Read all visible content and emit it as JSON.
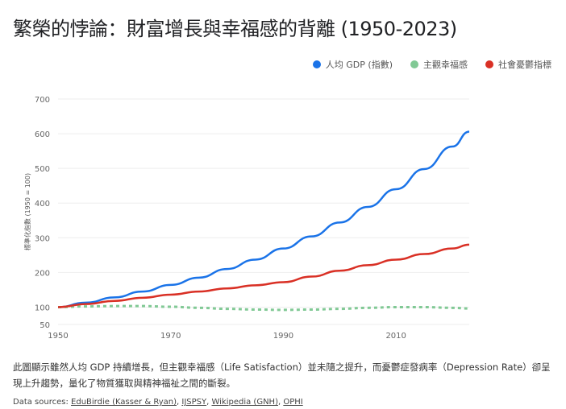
{
  "title": "繁榮的悖論：財富增長與幸福感的背離 (1950-2023)",
  "description": "此圖顯示雖然人均 GDP 持續增長，但主觀幸福感（Life Satisfaction）並未隨之提升，而憂鬱症發病率（Depression Rate）卻呈現上升趨勢，量化了物質獲取與精神福祉之間的斷裂。",
  "sources": {
    "label": "Data sources:",
    "links": [
      "EduBirdie (Kasser & Ryan)",
      "IJSPSY",
      "Wikipedia (GNH)",
      "OPHI"
    ]
  },
  "chart_data": {
    "type": "line",
    "title": "繁榮的悖論：財富增長與幸福感的背離 (1950-2023)",
    "ylabel": "標準化指數 (1950 = 100)",
    "xlabel": "",
    "xlim": [
      1950,
      2023
    ],
    "ylim": [
      50,
      700
    ],
    "yticks": [
      50,
      100,
      200,
      300,
      400,
      500,
      600,
      700
    ],
    "xticks": [
      1950,
      1970,
      1990,
      2010
    ],
    "grid": true,
    "legend": "top-right",
    "x": [
      1950,
      1955,
      1960,
      1965,
      1970,
      1975,
      1980,
      1985,
      1990,
      1995,
      2000,
      2005,
      2010,
      2015,
      2020,
      2023
    ],
    "series": [
      {
        "name": "人均 GDP (指數)",
        "color": "#1a73e8",
        "style": "solid",
        "values": [
          100,
          113,
          128,
          145,
          164,
          185,
          210,
          237,
          269,
          304,
          344,
          389,
          440,
          498,
          563,
          606
        ]
      },
      {
        "name": "主觀幸福感",
        "color": "#81c995",
        "style": "dashed",
        "values": [
          100,
          102,
          103,
          103,
          101,
          98,
          95,
          93,
          92,
          93,
          95,
          98,
          100,
          100,
          98,
          96
        ]
      },
      {
        "name": "社會憂鬱指標",
        "color": "#d93025",
        "style": "solid",
        "values": [
          100,
          109,
          118,
          127,
          136,
          145,
          154,
          163,
          172,
          188,
          205,
          221,
          237,
          253,
          269,
          280
        ]
      }
    ]
  }
}
